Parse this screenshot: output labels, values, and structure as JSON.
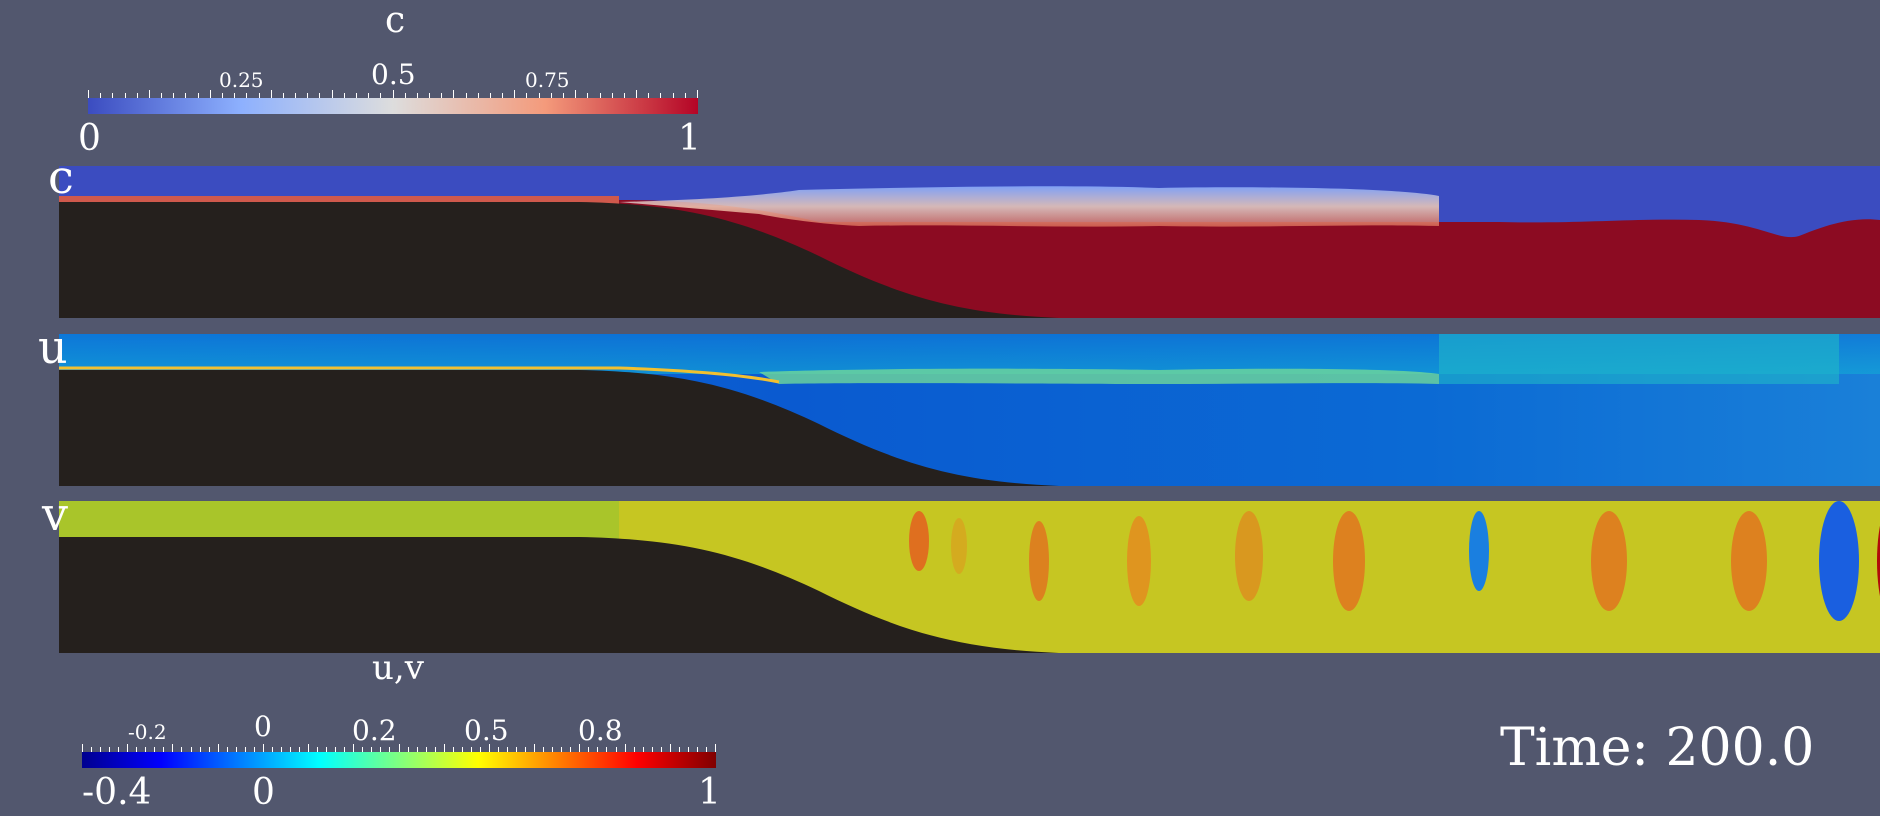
{
  "colorbar_c": {
    "title": "c",
    "minor_labels": [
      "0.25",
      "0.5",
      "0.75"
    ],
    "min_label": "0",
    "max_label": "1",
    "colors": [
      "#3b4cc0",
      "#dddddd",
      "#b40426"
    ]
  },
  "colorbar_uv": {
    "title": "u,v",
    "minor_labels": [
      "-0.2",
      "0",
      "0.2",
      "0.5",
      "0.8"
    ],
    "min_label": "-0.4",
    "zero_label": "0",
    "max_label": "1",
    "colors": [
      "#00008f",
      "#0000ff",
      "#00ffff",
      "#ffff00",
      "#ff0000",
      "#800000"
    ]
  },
  "panels": {
    "c": {
      "label": "c"
    },
    "u": {
      "label": "u"
    },
    "v": {
      "label": "v"
    }
  },
  "time": {
    "text": "Time: 200.0"
  }
}
